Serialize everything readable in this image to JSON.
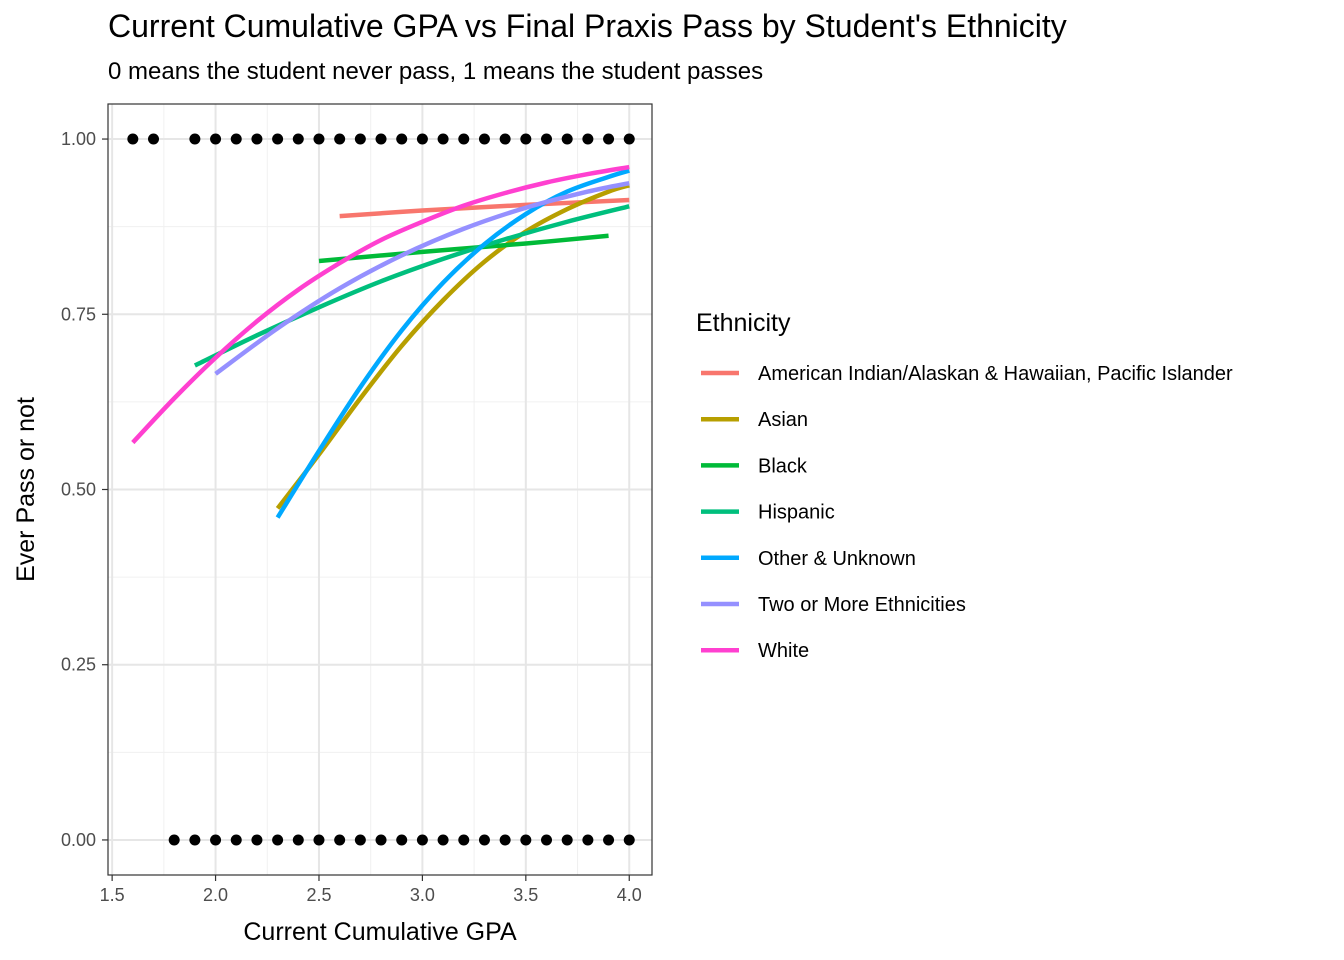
{
  "chart_data": {
    "type": "scatter",
    "title": "Current Cumulative GPA vs Final Praxis Pass by Student's Ethnicity",
    "subtitle": "0 means the student never pass, 1 means the student passes",
    "xlabel": "Current Cumulative GPA",
    "ylabel": "Ever Pass or not",
    "xlim": [
      1.48,
      4.11
    ],
    "ylim": [
      -0.05,
      1.05
    ],
    "x_ticks": [
      1.5,
      2.0,
      2.5,
      3.0,
      3.5,
      4.0
    ],
    "x_tick_labels": [
      "1.5",
      "2.0",
      "2.5",
      "3.0",
      "3.5",
      "4.0"
    ],
    "y_ticks": [
      0,
      0.25,
      0.5,
      0.75,
      1.0
    ],
    "y_tick_labels": [
      "0.00",
      "0.25",
      "0.50",
      "0.75",
      "1.00"
    ],
    "grid": true,
    "legend_title": "Ethnicity",
    "legend_position": "right",
    "points": {
      "color": "#000000",
      "y1_x": [
        1.6,
        1.7,
        1.9,
        2.0,
        2.1,
        2.2,
        2.3,
        2.4,
        2.5,
        2.6,
        2.7,
        2.8,
        2.9,
        3.0,
        3.1,
        3.2,
        3.3,
        3.4,
        3.5,
        3.6,
        3.7,
        3.8,
        3.9,
        4.0
      ],
      "y0_x": [
        1.8,
        1.9,
        2.0,
        2.1,
        2.2,
        2.3,
        2.4,
        2.5,
        2.6,
        2.7,
        2.8,
        2.9,
        3.0,
        3.1,
        3.2,
        3.3,
        3.4,
        3.5,
        3.6,
        3.7,
        3.8,
        3.9,
        4.0
      ]
    },
    "series": [
      {
        "name": "American Indian/Alaskan & Hawaiian, Pacific Islander",
        "color": "#F8766D",
        "x": [
          2.6,
          3.0,
          3.5,
          4.0
        ],
        "y": [
          0.89,
          0.898,
          0.906,
          0.913
        ]
      },
      {
        "name": "Asian",
        "color": "#B79F00",
        "x": [
          2.3,
          2.5,
          2.7,
          2.9,
          3.1,
          3.3,
          3.5,
          3.7,
          3.9,
          4.0
        ],
        "y": [
          0.473,
          0.55,
          0.63,
          0.705,
          0.77,
          0.825,
          0.868,
          0.9,
          0.925,
          0.934
        ]
      },
      {
        "name": "Black",
        "color": "#00BA38",
        "x": [
          2.5,
          3.0,
          3.5,
          3.9
        ],
        "y": [
          0.826,
          0.839,
          0.851,
          0.862
        ]
      },
      {
        "name": "Hispanic",
        "color": "#00BF7D",
        "x": [
          1.9,
          2.2,
          2.5,
          2.8,
          3.1,
          3.4,
          3.7,
          4.0
        ],
        "y": [
          0.677,
          0.72,
          0.76,
          0.797,
          0.829,
          0.857,
          0.882,
          0.904
        ]
      },
      {
        "name": "Other & Unknown",
        "color": "#00A9FF",
        "x": [
          2.3,
          2.5,
          2.7,
          2.9,
          3.1,
          3.3,
          3.5,
          3.7,
          3.9,
          4.0
        ],
        "y": [
          0.46,
          0.555,
          0.646,
          0.727,
          0.795,
          0.85,
          0.893,
          0.925,
          0.946,
          0.955
        ]
      },
      {
        "name": "Two or More Ethnicities",
        "color": "#9590FF",
        "x": [
          2.0,
          2.3,
          2.6,
          2.9,
          3.2,
          3.5,
          3.8,
          4.0
        ],
        "y": [
          0.665,
          0.73,
          0.787,
          0.834,
          0.872,
          0.902,
          0.925,
          0.937
        ]
      },
      {
        "name": "White",
        "color": "#FF40D0",
        "x": [
          1.6,
          1.8,
          2.0,
          2.2,
          2.4,
          2.6,
          2.8,
          3.0,
          3.2,
          3.4,
          3.6,
          3.8,
          4.0
        ],
        "y": [
          0.567,
          0.63,
          0.688,
          0.74,
          0.785,
          0.823,
          0.856,
          0.882,
          0.905,
          0.923,
          0.938,
          0.95,
          0.96
        ]
      }
    ]
  }
}
